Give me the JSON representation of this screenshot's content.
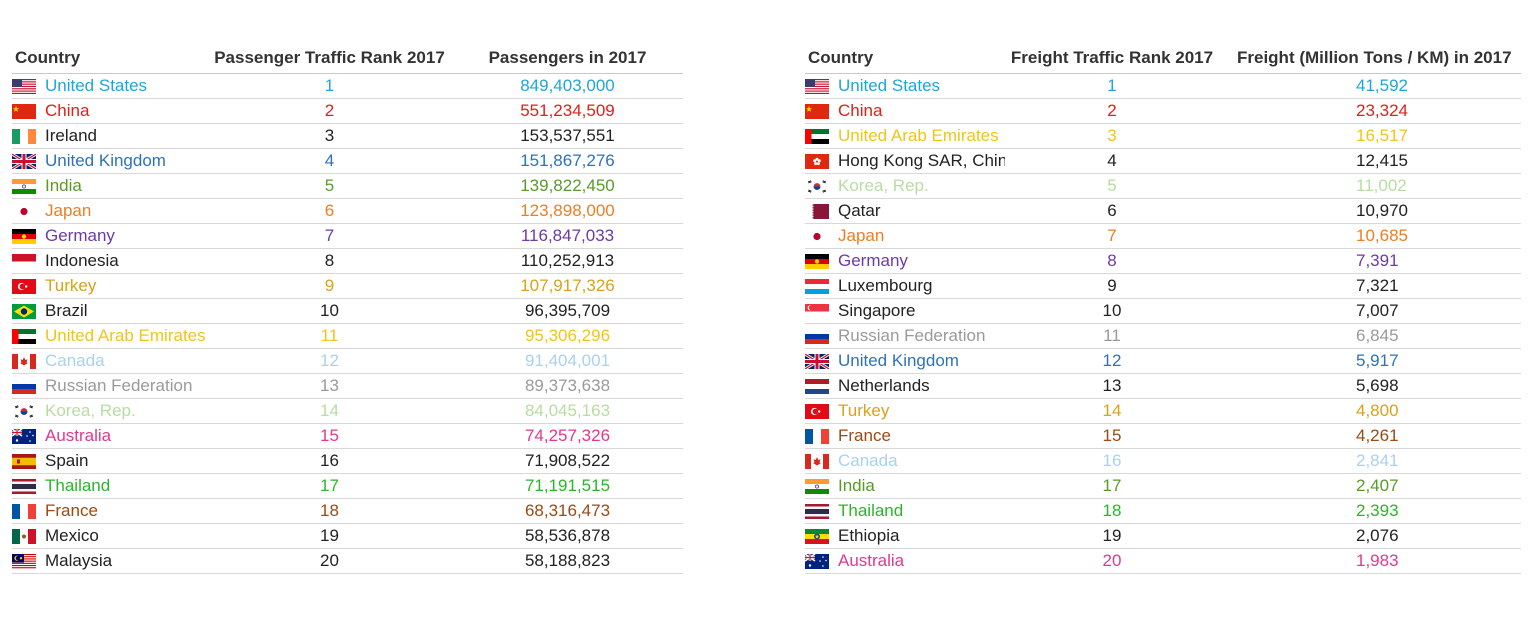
{
  "passenger_table": {
    "headers": {
      "country": "Country",
      "rank": "Passenger Traffic Rank 2017",
      "value": "Passengers in 2017"
    },
    "rows": [
      {
        "flag": "us-flag-icon",
        "country": "United States",
        "rank": "1",
        "value": "849,403,000",
        "color": "#1fa6d8"
      },
      {
        "flag": "cn-flag-icon",
        "country": "China",
        "rank": "2",
        "value": "551,234,509",
        "color": "#e0201a"
      },
      {
        "flag": "ie-flag-icon",
        "country": "Ireland",
        "rank": "3",
        "value": "153,537,551",
        "color": "#222222"
      },
      {
        "flag": "gb-flag-icon",
        "country": "United Kingdom",
        "rank": "4",
        "value": "151,867,276",
        "color": "#2f72b8"
      },
      {
        "flag": "in-flag-icon",
        "country": "India",
        "rank": "5",
        "value": "139,822,450",
        "color": "#5a9a2a"
      },
      {
        "flag": "jp-flag-icon",
        "country": "Japan",
        "rank": "6",
        "value": "123,898,000",
        "color": "#ef7d22"
      },
      {
        "flag": "de-flag-icon",
        "country": "Germany",
        "rank": "7",
        "value": "116,847,033",
        "color": "#6c3aa5"
      },
      {
        "flag": "id-flag-icon",
        "country": "Indonesia",
        "rank": "8",
        "value": "110,252,913",
        "color": "#222222"
      },
      {
        "flag": "tr-flag-icon",
        "country": "Turkey",
        "rank": "9",
        "value": "107,917,326",
        "color": "#d9a21a"
      },
      {
        "flag": "br-flag-icon",
        "country": "Brazil",
        "rank": "10",
        "value": "96,395,709",
        "color": "#222222"
      },
      {
        "flag": "ae-flag-icon",
        "country": "United Arab Emirates",
        "rank": "11",
        "value": "95,306,296",
        "color": "#efc51a"
      },
      {
        "flag": "ca-flag-icon",
        "country": "Canada",
        "rank": "12",
        "value": "91,404,001",
        "color": "#a9d2ee"
      },
      {
        "flag": "ru-flag-icon",
        "country": "Russian Federation",
        "rank": "13",
        "value": "89,373,638",
        "color": "#9a9a9a"
      },
      {
        "flag": "kr-flag-icon",
        "country": "Korea, Rep.",
        "rank": "14",
        "value": "84,045,163",
        "color": "#b9dca1"
      },
      {
        "flag": "au-flag-icon",
        "country": "Australia",
        "rank": "15",
        "value": "74,257,326",
        "color": "#e2398f"
      },
      {
        "flag": "es-flag-icon",
        "country": "Spain",
        "rank": "16",
        "value": "71,908,522",
        "color": "#222222"
      },
      {
        "flag": "th-flag-icon",
        "country": "Thailand",
        "rank": "17",
        "value": "71,191,515",
        "color": "#2cb52c"
      },
      {
        "flag": "fr-flag-icon",
        "country": "France",
        "rank": "18",
        "value": "68,316,473",
        "color": "#9b4a14"
      },
      {
        "flag": "mx-flag-icon",
        "country": "Mexico",
        "rank": "19",
        "value": "58,536,878",
        "color": "#222222"
      },
      {
        "flag": "my-flag-icon",
        "country": "Malaysia",
        "rank": "20",
        "value": "58,188,823",
        "color": "#222222"
      }
    ]
  },
  "freight_table": {
    "headers": {
      "country": "Country",
      "rank": "Freight Traffic Rank 2017",
      "value": "Freight (Million Tons / KM) in 2017"
    },
    "rows": [
      {
        "flag": "us-flag-icon",
        "country": "United States",
        "rank": "1",
        "value": "41,592",
        "color": "#1fa6d8"
      },
      {
        "flag": "cn-flag-icon",
        "country": "China",
        "rank": "2",
        "value": "23,324",
        "color": "#e0201a"
      },
      {
        "flag": "ae-flag-icon",
        "country": "United Arab Emirates",
        "rank": "3",
        "value": "16,517",
        "color": "#efc51a"
      },
      {
        "flag": "hk-flag-icon",
        "country": "Hong Kong SAR, China",
        "rank": "4",
        "value": "12,415",
        "color": "#222222"
      },
      {
        "flag": "kr-flag-icon",
        "country": "Korea, Rep.",
        "rank": "5",
        "value": "11,002",
        "color": "#b9dca1"
      },
      {
        "flag": "qa-flag-icon",
        "country": "Qatar",
        "rank": "6",
        "value": "10,970",
        "color": "#222222"
      },
      {
        "flag": "jp-flag-icon",
        "country": "Japan",
        "rank": "7",
        "value": "10,685",
        "color": "#ef7d22"
      },
      {
        "flag": "de-flag-icon",
        "country": "Germany",
        "rank": "8",
        "value": "7,391",
        "color": "#6c3aa5"
      },
      {
        "flag": "lu-flag-icon",
        "country": "Luxembourg",
        "rank": "9",
        "value": "7,321",
        "color": "#222222"
      },
      {
        "flag": "sg-flag-icon",
        "country": "Singapore",
        "rank": "10",
        "value": "7,007",
        "color": "#222222"
      },
      {
        "flag": "ru-flag-icon",
        "country": "Russian Federation",
        "rank": "11",
        "value": "6,845",
        "color": "#9a9a9a"
      },
      {
        "flag": "gb-flag-icon",
        "country": "United Kingdom",
        "rank": "12",
        "value": "5,917",
        "color": "#2f72b8"
      },
      {
        "flag": "nl-flag-icon",
        "country": "Netherlands",
        "rank": "13",
        "value": "5,698",
        "color": "#222222"
      },
      {
        "flag": "tr-flag-icon",
        "country": "Turkey",
        "rank": "14",
        "value": "4,800",
        "color": "#d9a21a"
      },
      {
        "flag": "fr-flag-icon",
        "country": "France",
        "rank": "15",
        "value": "4,261",
        "color": "#9b4a14"
      },
      {
        "flag": "ca-flag-icon",
        "country": "Canada",
        "rank": "16",
        "value": "2,841",
        "color": "#a9d2ee"
      },
      {
        "flag": "in-flag-icon",
        "country": "India",
        "rank": "17",
        "value": "2,407",
        "color": "#5a9a2a"
      },
      {
        "flag": "th-flag-icon",
        "country": "Thailand",
        "rank": "18",
        "value": "2,393",
        "color": "#2cb52c"
      },
      {
        "flag": "et-flag-icon",
        "country": "Ethiopia",
        "rank": "19",
        "value": "2,076",
        "color": "#222222"
      },
      {
        "flag": "au-flag-icon",
        "country": "Australia",
        "rank": "20",
        "value": "1,983",
        "color": "#e2398f"
      }
    ]
  }
}
